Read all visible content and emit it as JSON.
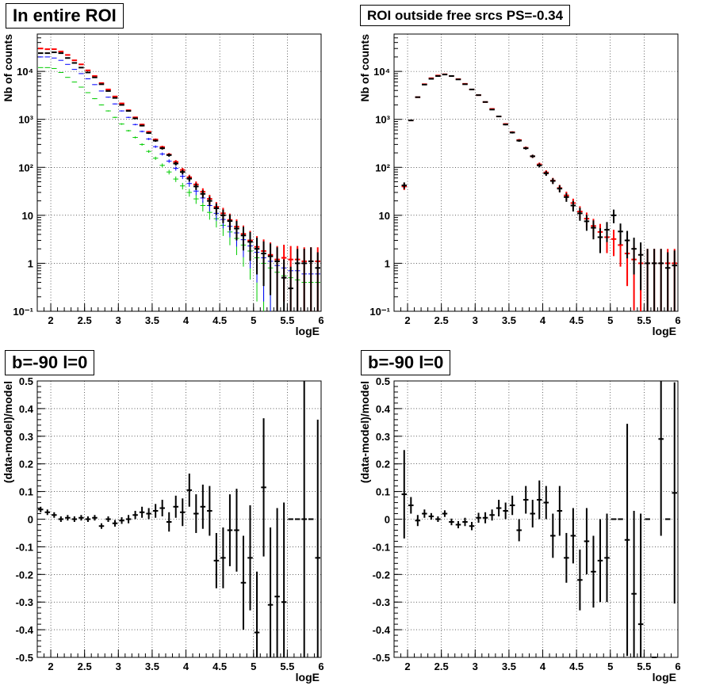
{
  "panel_titles": [
    "In entire ROI",
    "ROI outside free srcs PS=-0.34",
    "b=-90 l=0",
    "b=-90 l=0"
  ],
  "colors": {
    "data": "#000000",
    "model": "#ff0000",
    "component_blue": "#0000ff",
    "component_green": "#00cc00",
    "grid": "#000000"
  },
  "chart_data": [
    {
      "type": "scatter",
      "title": "In entire ROI",
      "xlabel": "logE",
      "ylabel": "Nb of counts",
      "xlim": [
        1.8,
        6.0
      ],
      "ylim": [
        0.1,
        60000
      ],
      "yscale": "log",
      "grid": true,
      "x_ticks": [
        2,
        2.5,
        3,
        3.5,
        4,
        4.5,
        5,
        5.5,
        6
      ],
      "x_tick_labels": [
        "2",
        "2.5",
        "3",
        "3.5",
        "4",
        "4.5",
        "5",
        "5.5",
        "6"
      ],
      "y_ticks": [
        0.1,
        1,
        10,
        100,
        1000,
        10000
      ],
      "y_tick_labels": [
        "10⁻¹",
        "1",
        "10",
        "10²",
        "10³",
        "10⁴"
      ],
      "x": [
        1.85,
        1.95,
        2.05,
        2.15,
        2.25,
        2.35,
        2.45,
        2.55,
        2.65,
        2.75,
        2.85,
        2.95,
        3.05,
        3.15,
        3.25,
        3.35,
        3.45,
        3.55,
        3.65,
        3.75,
        3.85,
        3.95,
        4.05,
        4.15,
        4.25,
        4.35,
        4.45,
        4.55,
        4.65,
        4.75,
        4.85,
        4.95,
        5.05,
        5.15,
        5.25,
        5.35,
        5.45,
        5.55,
        5.65,
        5.75,
        5.85,
        5.95
      ],
      "series": [
        {
          "color": "#000000",
          "values": [
            24000,
            24000,
            25000,
            24000,
            19000,
            15000,
            12000,
            9500,
            7500,
            5400,
            3900,
            2800,
            2000,
            1500,
            1050,
            740,
            520,
            360,
            250,
            180,
            120,
            80,
            58,
            40,
            28,
            20,
            14,
            10,
            7.6,
            5.3,
            3.8,
            2.8,
            2.0,
            1.6,
            1.4,
            1.1,
            0.5,
            0.3,
            1.0,
            1.0,
            1.1,
            0.8
          ]
        },
        {
          "color": "#ff0000",
          "values": [
            30000,
            29000,
            29000,
            26000,
            22000,
            17000,
            14000,
            10500,
            8000,
            5700,
            4200,
            3000,
            2150,
            1550,
            1100,
            780,
            550,
            380,
            265,
            185,
            130,
            88,
            62,
            44,
            31,
            22,
            15,
            11,
            8,
            5.8,
            4.1,
            3,
            2.2,
            1.8,
            1.5,
            1.2,
            1.3,
            1.2,
            1.2,
            1.1,
            1.1,
            1.1
          ]
        },
        {
          "color": "#0000ff",
          "values": [
            20000,
            20000,
            19000,
            17000,
            14000,
            11000,
            9000,
            7000,
            5300,
            3900,
            2900,
            2100,
            1500,
            1100,
            780,
            560,
            390,
            270,
            190,
            135,
            95,
            65,
            46,
            32,
            23,
            16,
            11,
            8.2,
            5.9,
            4.3,
            3.1,
            2.3,
            1.7,
            1.3,
            1.1,
            0.9,
            0.8,
            0.7,
            0.7,
            0.6,
            0.6,
            0.6
          ]
        },
        {
          "color": "#00cc00",
          "values": [
            12000,
            12000,
            11500,
            9500,
            7500,
            6000,
            4700,
            3600,
            2700,
            2000,
            1500,
            1100,
            800,
            580,
            420,
            300,
            215,
            155,
            110,
            80,
            57,
            41,
            30,
            22,
            16,
            11.5,
            8.5,
            6.2,
            4.5,
            3.3,
            2.4,
            1.8,
            1.3,
            1.0,
            0.8,
            0.65,
            0.55,
            0.5,
            0.45,
            0.4,
            0.4,
            0.4
          ]
        }
      ]
    },
    {
      "type": "scatter",
      "title": "ROI outside free srcs PS=-0.34",
      "xlabel": "logE",
      "ylabel": "Nb of counts",
      "xlim": [
        1.8,
        6.0
      ],
      "ylim": [
        0.1,
        60000
      ],
      "yscale": "log",
      "grid": true,
      "x_ticks": [
        2,
        2.5,
        3,
        3.5,
        4,
        4.5,
        5,
        5.5,
        6
      ],
      "x_tick_labels": [
        "2",
        "2.5",
        "3",
        "3.5",
        "4",
        "4.5",
        "5",
        "5.5",
        "6"
      ],
      "y_ticks": [
        0.1,
        1,
        10,
        100,
        1000,
        10000
      ],
      "y_tick_labels": [
        "10⁻¹",
        "1",
        "10",
        "10²",
        "10³",
        "10⁴"
      ],
      "x": [
        1.95,
        2.05,
        2.15,
        2.25,
        2.35,
        2.45,
        2.55,
        2.65,
        2.75,
        2.85,
        2.95,
        3.05,
        3.15,
        3.25,
        3.35,
        3.45,
        3.55,
        3.65,
        3.75,
        3.85,
        3.95,
        4.05,
        4.15,
        4.25,
        4.35,
        4.45,
        4.55,
        4.65,
        4.75,
        4.85,
        4.95,
        5.05,
        5.15,
        5.25,
        5.35,
        5.45,
        5.55,
        5.65,
        5.75,
        5.85,
        5.95
      ],
      "series": [
        {
          "color": "#000000",
          "values": [
            42,
            950,
            2900,
            5300,
            7000,
            8000,
            8600,
            8000,
            6800,
            5400,
            4200,
            3200,
            2300,
            1600,
            1150,
            780,
            530,
            360,
            250,
            170,
            110,
            75,
            52,
            36,
            24,
            16,
            11,
            7.5,
            5.5,
            3.5,
            5,
            10,
            4.6,
            3,
            2,
            1.5,
            1,
            1,
            1,
            0.8,
            0.9
          ]
        },
        {
          "color": "#ff0000",
          "values": [
            40,
            950,
            2900,
            5400,
            7200,
            8200,
            8700,
            8000,
            6900,
            5500,
            4200,
            3200,
            2300,
            1650,
            1150,
            800,
            540,
            370,
            255,
            170,
            115,
            78,
            53,
            37,
            26,
            18,
            12,
            8.5,
            6,
            4.5,
            3.5,
            3.2,
            2.4,
            1.6,
            1.2,
            1.0,
            1.0,
            1.0,
            1.0,
            1.0,
            1.0
          ]
        }
      ]
    },
    {
      "type": "scatter",
      "title": "b=-90 l=0",
      "xlabel": "logE",
      "ylabel": "(data-model)/model",
      "xlim": [
        1.8,
        6.0
      ],
      "ylim": [
        -0.5,
        0.5
      ],
      "grid": true,
      "x_ticks": [
        2,
        2.5,
        3,
        3.5,
        4,
        4.5,
        5,
        5.5,
        6
      ],
      "x_tick_labels": [
        "2",
        "2.5",
        "3",
        "3.5",
        "4",
        "4.5",
        "5",
        "5.5",
        "6"
      ],
      "y_ticks": [
        -0.5,
        -0.4,
        -0.3,
        -0.2,
        -0.1,
        0,
        0.1,
        0.2,
        0.3,
        0.4,
        0.5
      ],
      "y_tick_labels": [
        "-0.5",
        "-0.4",
        "-0.3",
        "-0.2",
        "-0.1",
        "0",
        "0.1",
        "0.2",
        "0.3",
        "0.4",
        "0.5"
      ],
      "x": [
        1.85,
        1.95,
        2.05,
        2.15,
        2.25,
        2.35,
        2.45,
        2.55,
        2.65,
        2.75,
        2.85,
        2.95,
        3.05,
        3.15,
        3.25,
        3.35,
        3.45,
        3.55,
        3.65,
        3.75,
        3.85,
        3.95,
        4.05,
        4.15,
        4.25,
        4.35,
        4.45,
        4.55,
        4.65,
        4.75,
        4.85,
        4.95,
        5.05,
        5.15,
        5.25,
        5.35,
        5.45,
        5.55,
        5.65,
        5.75,
        5.85,
        5.95
      ],
      "values": [
        0.035,
        0.025,
        0.015,
        0.0,
        0.005,
        0.0,
        0.005,
        0.0,
        0.005,
        -0.025,
        0.0,
        -0.015,
        -0.005,
        0.0,
        0.015,
        0.025,
        0.02,
        0.03,
        0.04,
        -0.01,
        0.045,
        0.025,
        0.105,
        0.02,
        0.045,
        0.03,
        -0.15,
        -0.14,
        -0.04,
        -0.04,
        -0.23,
        -0.14,
        -0.41,
        0.115,
        -0.31,
        -0.28,
        -0.3,
        0.0,
        0.0,
        0.0,
        0.0,
        -0.14
      ],
      "errors": [
        0.01,
        0.01,
        0.01,
        0.01,
        0.01,
        0.01,
        0.01,
        0.01,
        0.01,
        0.01,
        0.01,
        0.012,
        0.012,
        0.015,
        0.015,
        0.02,
        0.02,
        0.025,
        0.03,
        0.035,
        0.04,
        0.05,
        0.06,
        0.07,
        0.08,
        0.09,
        0.1,
        0.11,
        0.13,
        0.15,
        0.17,
        0.19,
        0.22,
        0.25,
        0.28,
        0.32,
        0.36,
        0.0,
        0.0,
        0.5,
        0.0,
        0.5
      ]
    },
    {
      "type": "scatter",
      "title": "b=-90 l=0",
      "xlabel": "logE",
      "ylabel": "(data-model)/model",
      "xlim": [
        1.8,
        6.0
      ],
      "ylim": [
        -0.5,
        0.5
      ],
      "grid": true,
      "x_ticks": [
        2,
        2.5,
        3,
        3.5,
        4,
        4.5,
        5,
        5.5,
        6
      ],
      "x_tick_labels": [
        "2",
        "2.5",
        "3",
        "3.5",
        "4",
        "4.5",
        "5",
        "5.5",
        "6"
      ],
      "y_ticks": [
        -0.5,
        -0.4,
        -0.3,
        -0.2,
        -0.1,
        0,
        0.1,
        0.2,
        0.3,
        0.4,
        0.5
      ],
      "y_tick_labels": [
        "-0.5",
        "-0.4",
        "-0.3",
        "-0.2",
        "-0.1",
        "0",
        "0.1",
        "0.2",
        "0.3",
        "0.4",
        "0.5"
      ],
      "x": [
        1.95,
        2.05,
        2.15,
        2.25,
        2.35,
        2.45,
        2.55,
        2.65,
        2.75,
        2.85,
        2.95,
        3.05,
        3.15,
        3.25,
        3.35,
        3.45,
        3.55,
        3.65,
        3.75,
        3.85,
        3.95,
        4.05,
        4.15,
        4.25,
        4.35,
        4.45,
        4.55,
        4.65,
        4.75,
        4.85,
        4.95,
        5.05,
        5.15,
        5.25,
        5.35,
        5.45,
        5.55,
        5.65,
        5.75,
        5.85,
        5.95
      ],
      "values": [
        0.09,
        0.05,
        -0.005,
        0.02,
        0.01,
        0.0,
        0.02,
        -0.01,
        -0.02,
        -0.01,
        -0.025,
        0.005,
        0.005,
        0.015,
        0.04,
        0.03,
        0.05,
        -0.04,
        0.07,
        0.02,
        0.07,
        0.06,
        -0.06,
        0.03,
        -0.14,
        -0.06,
        -0.22,
        -0.08,
        -0.19,
        -0.15,
        -0.14,
        0.0,
        0.0,
        -0.075,
        -0.27,
        -0.38,
        0.0,
        -0.5,
        0.29,
        0.0,
        0.095
      ],
      "errors": [
        0.16,
        0.03,
        0.02,
        0.015,
        0.012,
        0.01,
        0.012,
        0.012,
        0.013,
        0.015,
        0.015,
        0.018,
        0.02,
        0.02,
        0.03,
        0.03,
        0.035,
        0.04,
        0.05,
        0.05,
        0.07,
        0.06,
        0.08,
        0.09,
        0.09,
        0.1,
        0.11,
        0.12,
        0.13,
        0.15,
        0.16,
        0.0,
        0.0,
        0.42,
        0.3,
        0.4,
        0.0,
        0.0,
        0.35,
        0.0,
        0.4
      ]
    }
  ]
}
